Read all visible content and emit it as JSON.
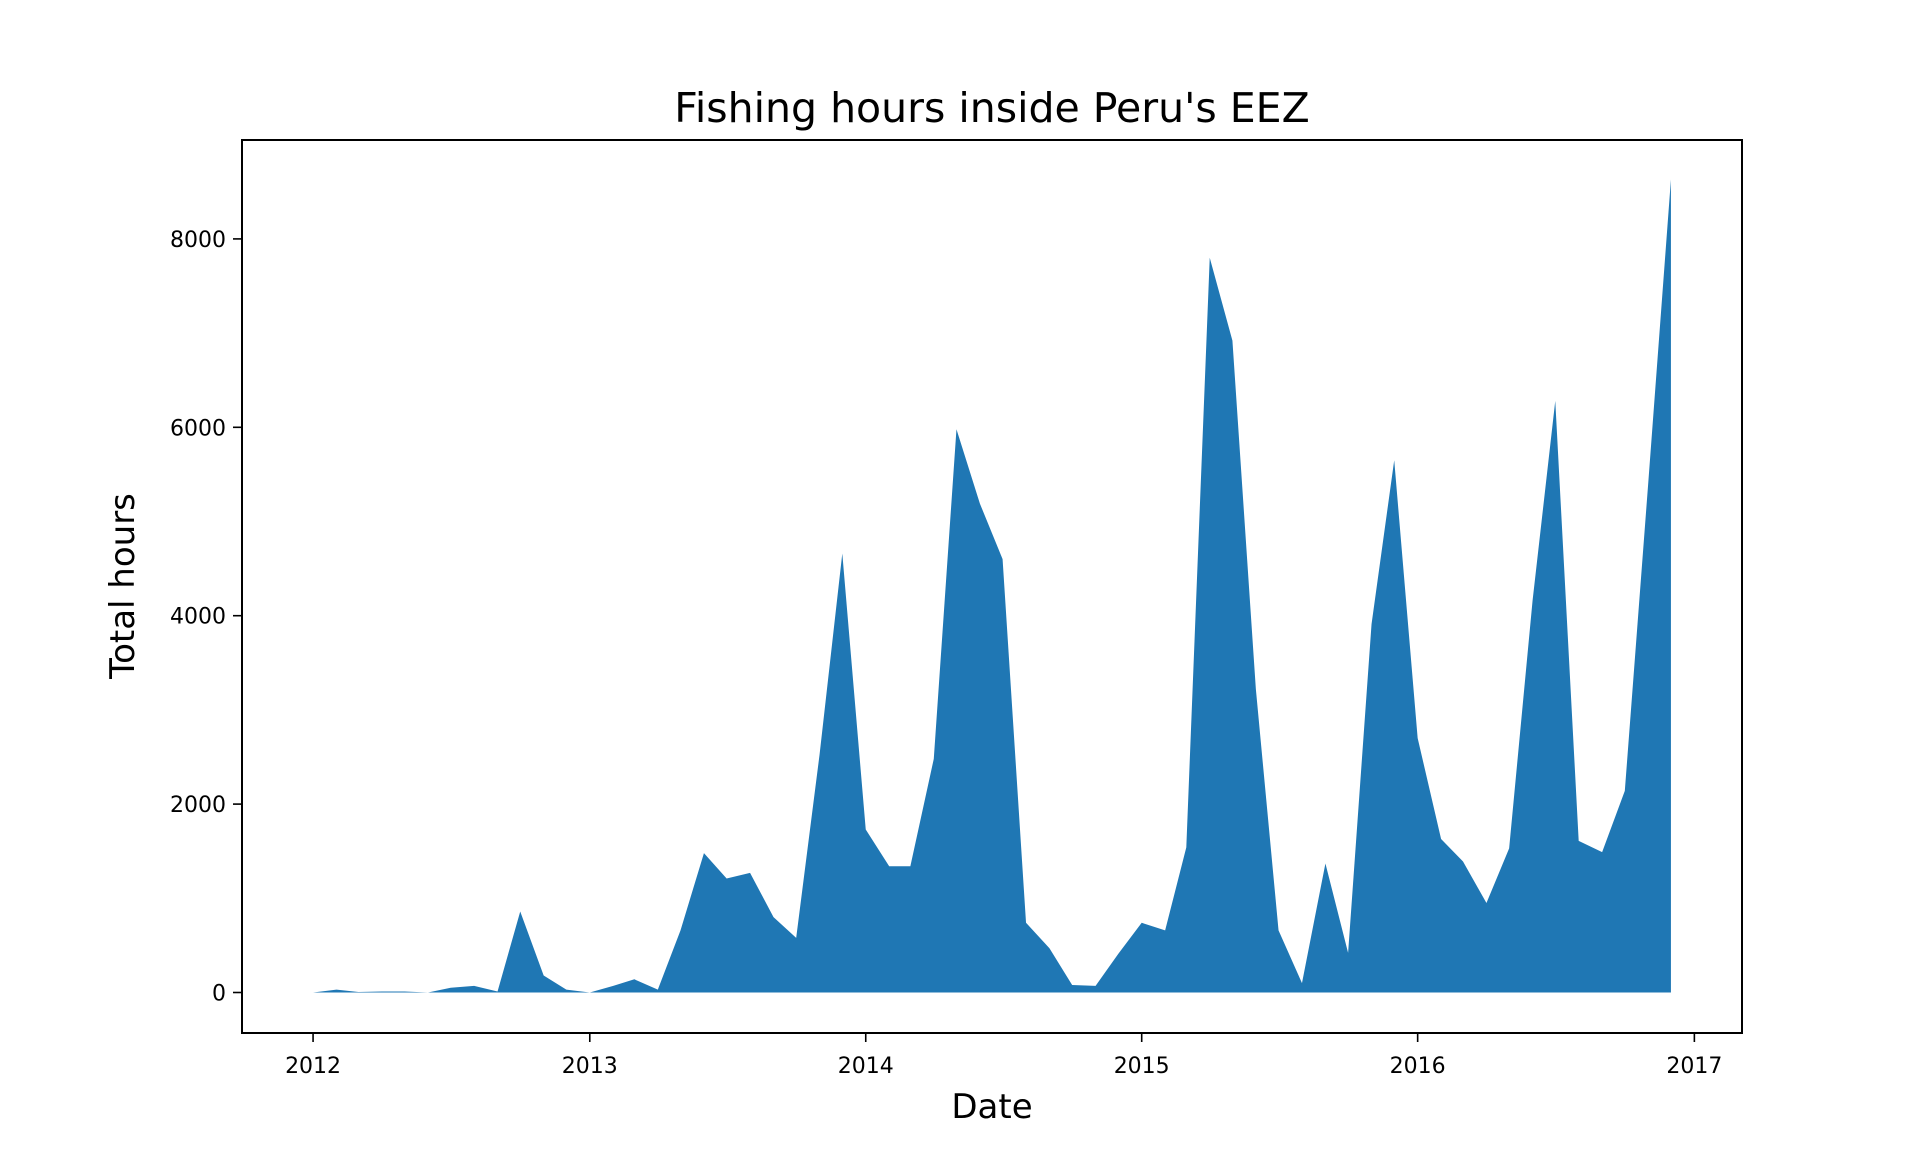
{
  "chart_data": {
    "type": "area",
    "title": "Fishing hours inside Peru's EEZ",
    "xlabel": "Date",
    "ylabel": "Total hours",
    "xlim": [
      "2011-09-29",
      "2017-03-05"
    ],
    "ylim": [
      -430,
      9050
    ],
    "x_ticks": [
      "2012",
      "2013",
      "2014",
      "2015",
      "2016",
      "2017"
    ],
    "y_ticks": [
      0,
      2000,
      4000,
      6000,
      8000
    ],
    "grid": false,
    "legend": "none",
    "color": "#1f77b4",
    "series": [
      {
        "x": [
          "2012-01-01",
          "2012-02-01",
          "2012-03-01",
          "2012-04-01",
          "2012-05-01",
          "2012-06-01",
          "2012-07-01",
          "2012-08-01",
          "2012-09-01",
          "2012-10-01",
          "2012-11-01",
          "2012-12-01",
          "2013-01-01",
          "2013-02-01",
          "2013-03-01",
          "2013-04-01",
          "2013-05-01",
          "2013-06-01",
          "2013-07-01",
          "2013-08-01",
          "2013-09-01",
          "2013-10-01",
          "2013-11-01",
          "2013-12-01",
          "2014-01-01",
          "2014-02-01",
          "2014-03-01",
          "2014-04-01",
          "2014-05-01",
          "2014-06-01",
          "2014-07-01",
          "2014-08-01",
          "2014-09-01",
          "2014-10-01",
          "2014-11-01",
          "2014-12-01",
          "2015-01-01",
          "2015-02-01",
          "2015-03-01",
          "2015-04-01",
          "2015-05-01",
          "2015-06-01",
          "2015-07-01",
          "2015-08-01",
          "2015-09-01",
          "2015-10-01",
          "2015-11-01",
          "2015-12-01",
          "2016-01-01",
          "2016-02-01",
          "2016-03-01",
          "2016-04-01",
          "2016-05-01",
          "2016-06-01",
          "2016-07-01",
          "2016-08-01",
          "2016-09-01",
          "2016-10-01",
          "2016-11-01",
          "2016-12-01"
        ],
        "values": [
          0,
          30,
          5,
          10,
          10,
          0,
          50,
          70,
          10,
          860,
          180,
          30,
          0,
          70,
          140,
          30,
          660,
          1480,
          1210,
          1270,
          800,
          580,
          2530,
          4660,
          1730,
          1340,
          1340,
          2480,
          5980,
          5190,
          4600,
          740,
          470,
          80,
          70,
          410,
          740,
          660,
          1540,
          7800,
          6920,
          3220,
          660,
          100,
          1370,
          420,
          3910,
          5650,
          2700,
          1630,
          1390,
          950,
          1530,
          4160,
          6280,
          1610,
          1490,
          2140,
          5410,
          8630
        ]
      }
    ]
  }
}
